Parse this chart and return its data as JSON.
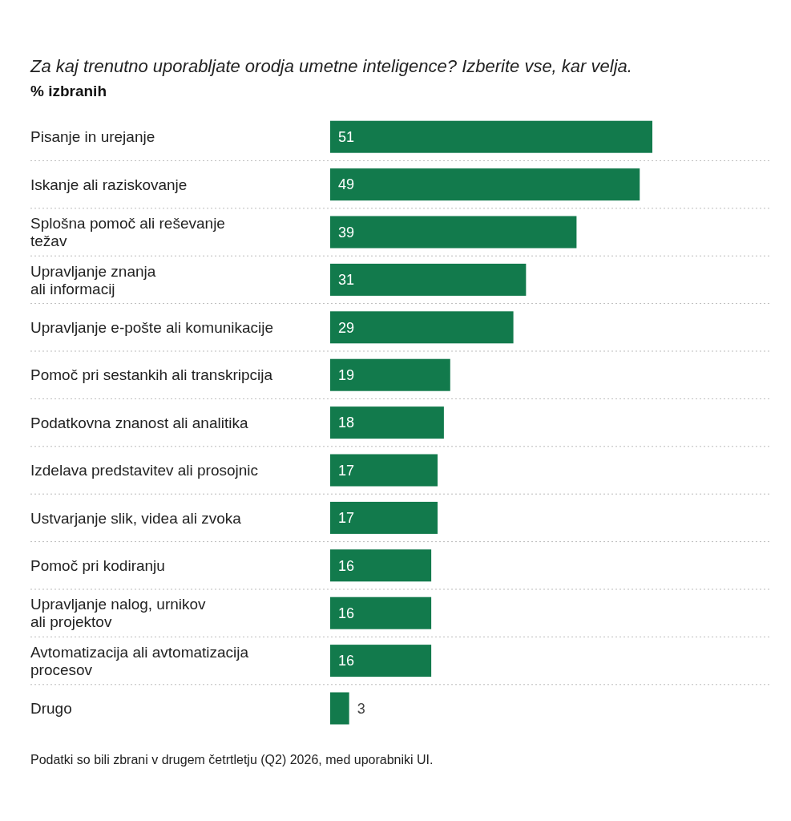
{
  "chart_data": {
    "type": "bar",
    "orientation": "horizontal",
    "title": "Za kaj trenutno uporabljate orodja umetne inteligence? Izberite vse, kar velja.",
    "subtitle": "% izbranih",
    "categories": [
      "Pisanje in urejanje",
      "Iskanje ali raziskovanje",
      "Splošna pomoč ali reševanje\ntežav",
      "Upravljanje znanja\nali informacij",
      "Upravljanje e-pošte ali komunikacije",
      "Pomoč pri sestankih ali transkripcija",
      "Podatkovna znanost ali analitika",
      "Izdelava predstavitev ali prosojnic",
      "Ustvarjanje slik, videa ali zvoka",
      "Pomoč pri kodiranju",
      "Upravljanje nalog, urnikov\nali projektov",
      "Avtomatizacija ali avtomatizacija\nprocesov",
      "Drugo"
    ],
    "values": [
      51,
      49,
      39,
      31,
      29,
      19,
      18,
      17,
      17,
      16,
      16,
      16,
      3
    ],
    "color": "#127a4c",
    "data_labels": true,
    "grid": "y",
    "annotations": [
      "Podatki so bili zbrani v drugem četrtletju (Q2) 2026, med uporabniki UI."
    ]
  }
}
